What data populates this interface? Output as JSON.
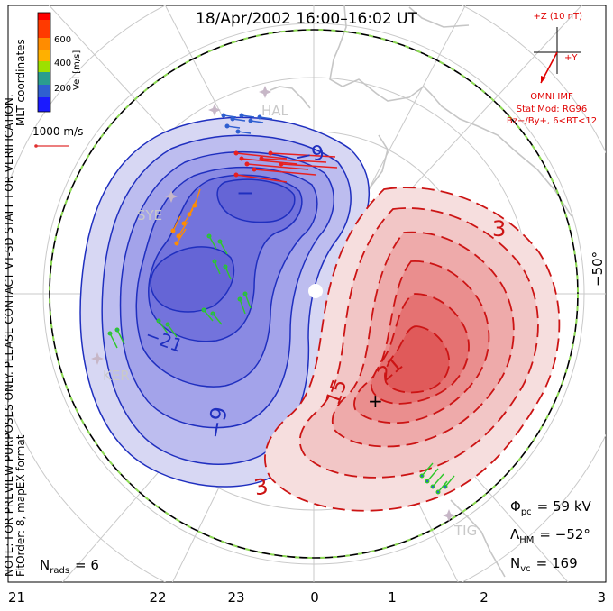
{
  "title": "18/Apr/2002 16:00–16:02 UT",
  "side_note": {
    "line1": "NOTE: FOR PREVIEW PURPOSES ONLY. PLEASE CONTACT VT-SD STAFF FOR VERIFICATION.",
    "line2": "MLT coordinates",
    "line3": "FitOrder: 8, mapEX format"
  },
  "colorbar": {
    "title": "Vel [m/s]",
    "ticks": [
      "600",
      "400",
      "200"
    ],
    "colors": [
      "#ff0000",
      "#ff6a00",
      "#ffb000",
      "#f2e600",
      "#9de000",
      "#2ec82a",
      "#2a9d8f",
      "#2f5fd0",
      "#1a1aff"
    ]
  },
  "reference_vector": {
    "label": "1000 m/s",
    "color": "#e03030"
  },
  "imf": {
    "axis_z": "+Z (10 nT)",
    "axis_y": "+Y",
    "label": "OMNI IMF",
    "model": "Stat Mod: RG96",
    "condition": "Bz−/By+, 6<BT<12",
    "color": "#e00000"
  },
  "mlt_ticks": [
    "21",
    "22",
    "23",
    "0",
    "1",
    "2",
    "3"
  ],
  "latitude_label": "−50°",
  "contour_labels": {
    "neg_inner": "−",
    "neg_9_top": "−9",
    "neg_21": "−21",
    "neg_9_bottom": "−9",
    "pos_3_top": "3",
    "pos_15": "15",
    "pos_21": "21",
    "pos_3_bottom": "3",
    "pos_center": "+"
  },
  "stations": [
    {
      "name": "HAL",
      "icon": "station-star-icon"
    },
    {
      "name": "SYE",
      "icon": "station-star-icon"
    },
    {
      "name": "KER",
      "icon": "station-star-icon"
    },
    {
      "name": "TIG",
      "icon": "station-star-icon"
    }
  ],
  "stats": {
    "phi_pc_label": "Φ",
    "phi_pc_sub": "pc",
    "phi_pc_value": "= 59 kV",
    "lambda_label": "Λ",
    "lambda_sub": "HM",
    "lambda_value": "= −52°",
    "nvc_label": "N",
    "nvc_sub": "vc",
    "nvc_value": "= 169",
    "nrads_label": "N",
    "nrads_sub": "rads",
    "nrads_value": "= 6"
  },
  "colors": {
    "negative_line": "#1f2fbf",
    "negative_fill": "#3b3bd9",
    "positive_line": "#cc1414",
    "positive_fill": "#e23b3b",
    "boundary_green": "#8edc54",
    "grid": "#bbbbbb",
    "coast": "#c4c4c4"
  }
}
